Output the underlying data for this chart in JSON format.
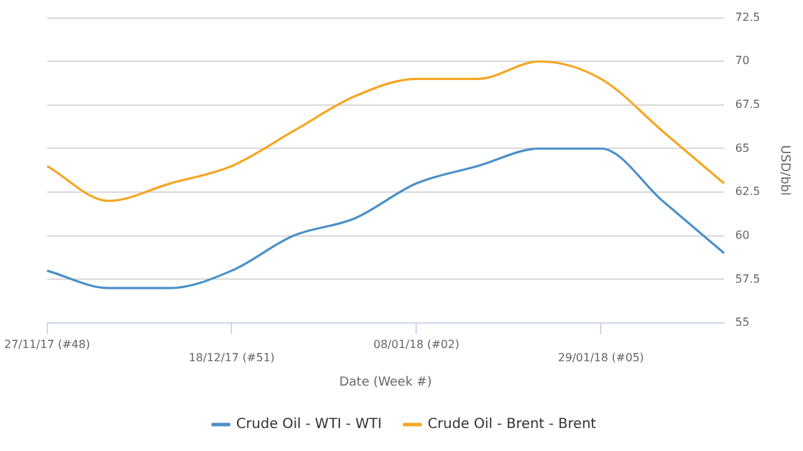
{
  "chart_data": {
    "type": "line",
    "xlabel": "Date (Week #)",
    "ylabel": "USD/bbl",
    "categories": [
      "27/11/17 (#48)",
      null,
      null,
      "18/12/17 (#51)",
      null,
      null,
      "08/01/18 (#02)",
      null,
      null,
      "29/01/18 (#05)",
      null,
      null
    ],
    "series": [
      {
        "name": "Crude Oil - WTI - WTI",
        "color": "#4a90c8",
        "values": [
          58,
          57,
          57,
          58,
          60,
          61,
          63,
          64,
          65,
          65,
          62,
          59
        ]
      },
      {
        "name": "Crude Oil - Brent - Brent",
        "color": "#f5a623",
        "values": [
          64,
          62,
          63,
          64,
          66,
          68,
          69,
          69,
          70,
          69,
          66,
          63
        ]
      }
    ],
    "ylim": [
      55,
      72.5
    ],
    "yticks": [
      55,
      57.5,
      60,
      62.5,
      65,
      67.5,
      70,
      72.5
    ],
    "grid": "y",
    "legend": "bottom",
    "marker": "none",
    "line_style": "solid"
  }
}
